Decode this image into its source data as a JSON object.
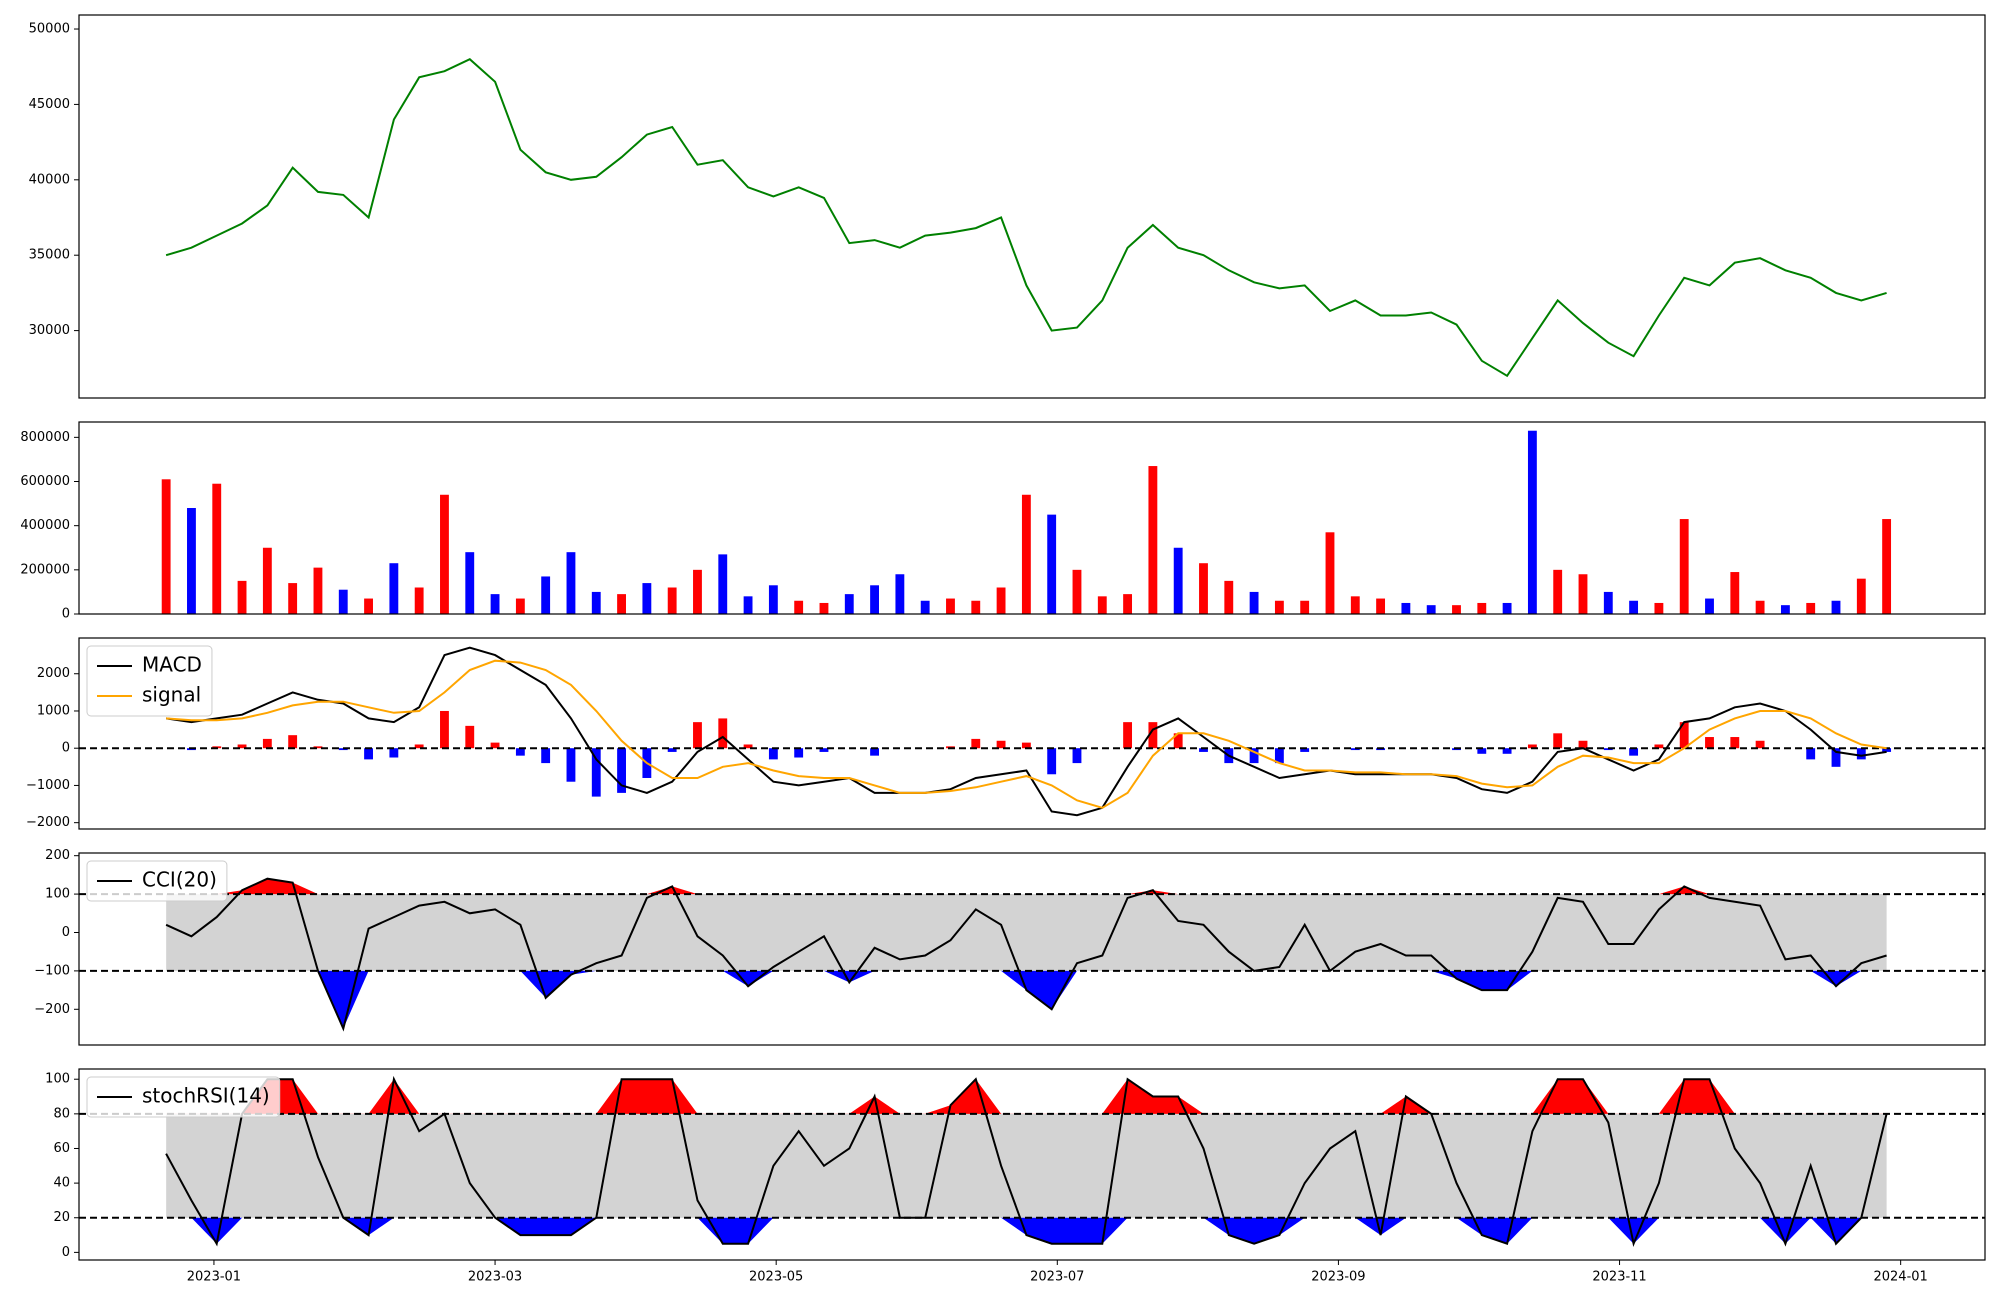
{
  "chart_data": [
    {
      "type": "line",
      "x": [
        -0.34,
        -0.16,
        0.02,
        0.2,
        0.38,
        0.56,
        0.74,
        0.92,
        1.1,
        1.28,
        1.46,
        1.64,
        1.82,
        2.0,
        2.18,
        2.36,
        2.54,
        2.72,
        2.9,
        3.08,
        3.26,
        3.44,
        3.62,
        3.8,
        3.98,
        4.16,
        4.34,
        4.52,
        4.7,
        4.88,
        5.06,
        5.24,
        5.42,
        5.6,
        5.78,
        5.96,
        6.14,
        6.32,
        6.5,
        6.68,
        6.86,
        7.04,
        7.22,
        7.4,
        7.58,
        7.76,
        7.94,
        8.12,
        8.3,
        8.48,
        8.66,
        8.84,
        9.02,
        9.2,
        9.38,
        9.56,
        9.74,
        9.92,
        10.1,
        10.28,
        10.46,
        10.64,
        10.82,
        11.0,
        11.18,
        11.36,
        11.54,
        11.72,
        11.9
      ],
      "xlim": [
        -0.96,
        12.6
      ],
      "ylim": [
        25530,
        50930
      ],
      "yticks": [
        30000,
        35000,
        40000,
        45000,
        50000
      ],
      "series": [
        {
          "color": "#008000",
          "values": [
            35000,
            35500,
            36300,
            37100,
            38300,
            40800,
            39200,
            39000,
            37500,
            44000,
            46800,
            47200,
            48000,
            46500,
            42000,
            40500,
            40000,
            40200,
            41500,
            43000,
            43500,
            41000,
            41300,
            39500,
            38900,
            39500,
            38800,
            35800,
            36000,
            35500,
            36300,
            36500,
            36800,
            37500,
            33000,
            30000,
            30200,
            32000,
            35500,
            37000,
            35500,
            35000,
            34000,
            33200,
            32800,
            33000,
            31300,
            32000,
            31000,
            31000,
            31200,
            30400,
            28000,
            27000,
            29500,
            32000,
            30500,
            29200,
            28300,
            31000,
            33500,
            33000,
            34500,
            34800,
            34000,
            33500,
            32500,
            32000,
            32500
          ]
        }
      ]
    },
    {
      "type": "bar",
      "x": [
        -0.34,
        -0.16,
        0.02,
        0.2,
        0.38,
        0.56,
        0.74,
        0.92,
        1.1,
        1.28,
        1.46,
        1.64,
        1.82,
        2.0,
        2.18,
        2.36,
        2.54,
        2.72,
        2.9,
        3.08,
        3.26,
        3.44,
        3.62,
        3.8,
        3.98,
        4.16,
        4.34,
        4.52,
        4.7,
        4.88,
        5.06,
        5.24,
        5.42,
        5.6,
        5.78,
        5.96,
        6.14,
        6.32,
        6.5,
        6.68,
        6.86,
        7.04,
        7.22,
        7.4,
        7.58,
        7.76,
        7.94,
        8.12,
        8.3,
        8.48,
        8.66,
        8.84,
        9.02,
        9.2,
        9.38,
        9.56,
        9.74,
        9.92,
        10.1,
        10.28,
        10.46,
        10.64,
        10.82,
        11.0,
        11.18,
        11.36,
        11.54,
        11.72,
        11.9
      ],
      "xlim": [
        -0.96,
        12.6
      ],
      "ylim": [
        0,
        869500
      ],
      "yticks": [
        0,
        200000,
        400000,
        600000,
        800000
      ],
      "series": [
        {
          "values": [
            610000,
            480000,
            590000,
            150000,
            300000,
            140000,
            210000,
            110000,
            70000,
            230000,
            120000,
            540000,
            280000,
            90000,
            70000,
            170000,
            280000,
            100000,
            90000,
            140000,
            120000,
            200000,
            270000,
            80000,
            130000,
            60000,
            50000,
            90000,
            130000,
            180000,
            60000,
            70000,
            60000,
            120000,
            540000,
            450000,
            200000,
            80000,
            90000,
            670000,
            300000,
            230000,
            150000,
            100000,
            60000,
            60000,
            370000,
            80000,
            70000,
            50000,
            40000,
            40000,
            50000,
            50000,
            830000,
            200000,
            180000,
            100000,
            60000,
            50000,
            430000,
            70000,
            190000,
            60000,
            40000,
            50000,
            60000,
            160000,
            430000
          ],
          "bar_colors": [
            "#ff0000",
            "#0000ff",
            "#ff0000",
            "#ff0000",
            "#ff0000",
            "#ff0000",
            "#ff0000",
            "#0000ff",
            "#ff0000",
            "#0000ff",
            "#ff0000",
            "#ff0000",
            "#0000ff",
            "#0000ff",
            "#ff0000",
            "#0000ff",
            "#0000ff",
            "#0000ff",
            "#ff0000",
            "#0000ff",
            "#ff0000",
            "#ff0000",
            "#0000ff",
            "#0000ff",
            "#0000ff",
            "#ff0000",
            "#ff0000",
            "#0000ff",
            "#0000ff",
            "#0000ff",
            "#0000ff",
            "#ff0000",
            "#ff0000",
            "#ff0000",
            "#ff0000",
            "#0000ff",
            "#ff0000",
            "#ff0000",
            "#ff0000",
            "#ff0000",
            "#0000ff",
            "#ff0000",
            "#ff0000",
            "#0000ff",
            "#ff0000",
            "#ff0000",
            "#ff0000",
            "#ff0000",
            "#ff0000",
            "#0000ff",
            "#0000ff",
            "#ff0000",
            "#ff0000",
            "#0000ff",
            "#0000ff",
            "#ff0000",
            "#ff0000",
            "#0000ff",
            "#0000ff",
            "#ff0000",
            "#ff0000",
            "#0000ff",
            "#ff0000",
            "#ff0000",
            "#0000ff",
            "#ff0000",
            "#0000ff",
            "#ff0000",
            "#ff0000"
          ]
        }
      ]
    },
    {
      "type": "combo",
      "x": [
        -0.34,
        -0.16,
        0.02,
        0.2,
        0.38,
        0.56,
        0.74,
        0.92,
        1.1,
        1.28,
        1.46,
        1.64,
        1.82,
        2.0,
        2.18,
        2.36,
        2.54,
        2.72,
        2.9,
        3.08,
        3.26,
        3.44,
        3.62,
        3.8,
        3.98,
        4.16,
        4.34,
        4.52,
        4.7,
        4.88,
        5.06,
        5.24,
        5.42,
        5.6,
        5.78,
        5.96,
        6.14,
        6.32,
        6.5,
        6.68,
        6.86,
        7.04,
        7.22,
        7.4,
        7.58,
        7.76,
        7.94,
        8.12,
        8.3,
        8.48,
        8.66,
        8.84,
        9.02,
        9.2,
        9.38,
        9.56,
        9.74,
        9.92,
        10.1,
        10.28,
        10.46,
        10.64,
        10.82,
        11.0,
        11.18,
        11.36,
        11.54,
        11.72,
        11.9
      ],
      "xlim": [
        -0.96,
        12.6
      ],
      "ylim": [
        -2170,
        2960
      ],
      "yticks": [
        {
          "value": -2000,
          "label": "−2000"
        },
        {
          "value": -1000,
          "label": "−1000"
        },
        0,
        1000,
        2000
      ],
      "levels": [
        0
      ],
      "legend": "upper left",
      "series": [
        {
          "style": "bar",
          "up_color": "#ff0000",
          "down_color": "#0000ff",
          "values": [
            0,
            -50,
            50,
            100,
            250,
            350,
            50,
            -50,
            -300,
            -250,
            100,
            1000,
            600,
            150,
            -200,
            -400,
            -900,
            -1300,
            -1200,
            -800,
            -100,
            700,
            800,
            100,
            -300,
            -250,
            -100,
            0,
            -200,
            0,
            0,
            50,
            250,
            200,
            150,
            -700,
            -400,
            0,
            700,
            700,
            400,
            -100,
            -400,
            -400,
            -400,
            -100,
            0,
            -50,
            -50,
            0,
            0,
            -50,
            -150,
            -150,
            100,
            400,
            200,
            -50,
            -200,
            100,
            700,
            300,
            300,
            200,
            0,
            -300,
            -500,
            -300,
            -100
          ]
        },
        {
          "style": "line",
          "name": "MACD",
          "color": "#000000",
          "values": [
            800,
            700,
            800,
            900,
            1200,
            1500,
            1300,
            1200,
            800,
            700,
            1100,
            2500,
            2700,
            2500,
            2100,
            1700,
            800,
            -300,
            -1000,
            -1200,
            -900,
            -100,
            300,
            -300,
            -900,
            -1000,
            -900,
            -800,
            -1200,
            -1200,
            -1200,
            -1100,
            -800,
            -700,
            -600,
            -1700,
            -1800,
            -1600,
            -500,
            500,
            800,
            300,
            -200,
            -500,
            -800,
            -700,
            -600,
            -700,
            -700,
            -700,
            -700,
            -800,
            -1100,
            -1200,
            -900,
            -100,
            0,
            -300,
            -600,
            -300,
            700,
            800,
            1100,
            1200,
            1000,
            500,
            -100,
            -200,
            -100
          ]
        },
        {
          "style": "line",
          "name": "signal",
          "color": "#ffa500",
          "values": [
            800,
            750,
            750,
            800,
            950,
            1150,
            1250,
            1250,
            1100,
            950,
            1000,
            1500,
            2100,
            2350,
            2300,
            2100,
            1700,
            1000,
            200,
            -400,
            -800,
            -800,
            -500,
            -400,
            -600,
            -750,
            -800,
            -800,
            -1000,
            -1200,
            -1200,
            -1150,
            -1050,
            -900,
            -750,
            -1000,
            -1400,
            -1600,
            -1200,
            -200,
            400,
            400,
            200,
            -100,
            -400,
            -600,
            -600,
            -650,
            -650,
            -700,
            -700,
            -750,
            -950,
            -1050,
            -1000,
            -500,
            -200,
            -250,
            -400,
            -400,
            0,
            500,
            800,
            1000,
            1000,
            800,
            400,
            100,
            0
          ]
        }
      ]
    },
    {
      "type": "band",
      "x": [
        -0.34,
        -0.16,
        0.02,
        0.2,
        0.38,
        0.56,
        0.74,
        0.92,
        1.1,
        1.28,
        1.46,
        1.64,
        1.82,
        2.0,
        2.18,
        2.36,
        2.54,
        2.72,
        2.9,
        3.08,
        3.26,
        3.44,
        3.62,
        3.8,
        3.98,
        4.16,
        4.34,
        4.52,
        4.7,
        4.88,
        5.06,
        5.24,
        5.42,
        5.6,
        5.78,
        5.96,
        6.14,
        6.32,
        6.5,
        6.68,
        6.86,
        7.04,
        7.22,
        7.4,
        7.58,
        7.76,
        7.94,
        8.12,
        8.3,
        8.48,
        8.66,
        8.84,
        9.02,
        9.2,
        9.38,
        9.56,
        9.74,
        9.92,
        10.1,
        10.28,
        10.46,
        10.64,
        10.82,
        11.0,
        11.18,
        11.36,
        11.54,
        11.72,
        11.9
      ],
      "xlim": [
        -0.96,
        12.6
      ],
      "ylim": [
        -293,
        207
      ],
      "yticks": [
        {
          "value": -200,
          "label": "−200"
        },
        {
          "value": -100,
          "label": "−100"
        },
        0,
        100,
        200
      ],
      "levels": [
        -100,
        100
      ],
      "band_color": "#d3d3d3",
      "upper_color": "#ff0000",
      "lower_color": "#0000ff",
      "legend": "upper left",
      "series": [
        {
          "name": "CCI(20)",
          "color": "#000000",
          "values": [
            20,
            -10,
            40,
            110,
            140,
            130,
            -100,
            -250,
            10,
            40,
            70,
            80,
            50,
            60,
            20,
            -170,
            -110,
            -80,
            -60,
            90,
            120,
            -10,
            -60,
            -140,
            -90,
            -50,
            -10,
            -130,
            -40,
            -70,
            -60,
            -20,
            60,
            20,
            -150,
            -200,
            -80,
            -60,
            90,
            110,
            30,
            20,
            -50,
            -100,
            -90,
            20,
            -100,
            -50,
            -30,
            -60,
            -60,
            -120,
            -150,
            -150,
            -50,
            90,
            80,
            -30,
            -30,
            60,
            120,
            90,
            80,
            70,
            -70,
            -60,
            -140,
            -80,
            -60
          ]
        }
      ]
    },
    {
      "type": "band",
      "x": [
        -0.34,
        -0.16,
        0.02,
        0.2,
        0.38,
        0.56,
        0.74,
        0.92,
        1.1,
        1.28,
        1.46,
        1.64,
        1.82,
        2.0,
        2.18,
        2.36,
        2.54,
        2.72,
        2.9,
        3.08,
        3.26,
        3.44,
        3.62,
        3.8,
        3.98,
        4.16,
        4.34,
        4.52,
        4.7,
        4.88,
        5.06,
        5.24,
        5.42,
        5.6,
        5.78,
        5.96,
        6.14,
        6.32,
        6.5,
        6.68,
        6.86,
        7.04,
        7.22,
        7.4,
        7.58,
        7.76,
        7.94,
        8.12,
        8.3,
        8.48,
        8.66,
        8.84,
        9.02,
        9.2,
        9.38,
        9.56,
        9.74,
        9.92,
        10.1,
        10.28,
        10.46,
        10.64,
        10.82,
        11.0,
        11.18,
        11.36,
        11.54,
        11.72,
        11.9
      ],
      "xlim": [
        -0.96,
        12.6
      ],
      "xticks": [
        {
          "value": 0,
          "label": "2023-01"
        },
        {
          "value": 2,
          "label": "2023-03"
        },
        {
          "value": 4,
          "label": "2023-05"
        },
        {
          "value": 6,
          "label": "2023-07"
        },
        {
          "value": 8,
          "label": "2023-09"
        },
        {
          "value": 10,
          "label": "2023-11"
        },
        {
          "value": 12,
          "label": "2024-01"
        }
      ],
      "ylim": [
        -4.4,
        105.9
      ],
      "yticks": [
        0,
        20,
        40,
        60,
        80,
        100
      ],
      "levels": [
        20,
        80
      ],
      "band_color": "#d3d3d3",
      "upper_color": "#ff0000",
      "lower_color": "#0000ff",
      "legend": "upper left",
      "series": [
        {
          "name": "stochRSI(14)",
          "color": "#000000",
          "values": [
            57,
            30,
            5,
            80,
            100,
            100,
            55,
            20,
            10,
            100,
            70,
            80,
            40,
            20,
            10,
            10,
            10,
            20,
            100,
            100,
            100,
            30,
            5,
            5,
            50,
            70,
            50,
            60,
            90,
            20,
            20,
            85,
            100,
            50,
            10,
            5,
            5,
            5,
            100,
            90,
            90,
            60,
            10,
            5,
            10,
            40,
            60,
            70,
            10,
            90,
            80,
            40,
            10,
            5,
            70,
            100,
            100,
            75,
            5,
            40,
            100,
            100,
            60,
            40,
            5,
            50,
            5,
            20,
            80
          ]
        }
      ]
    }
  ]
}
